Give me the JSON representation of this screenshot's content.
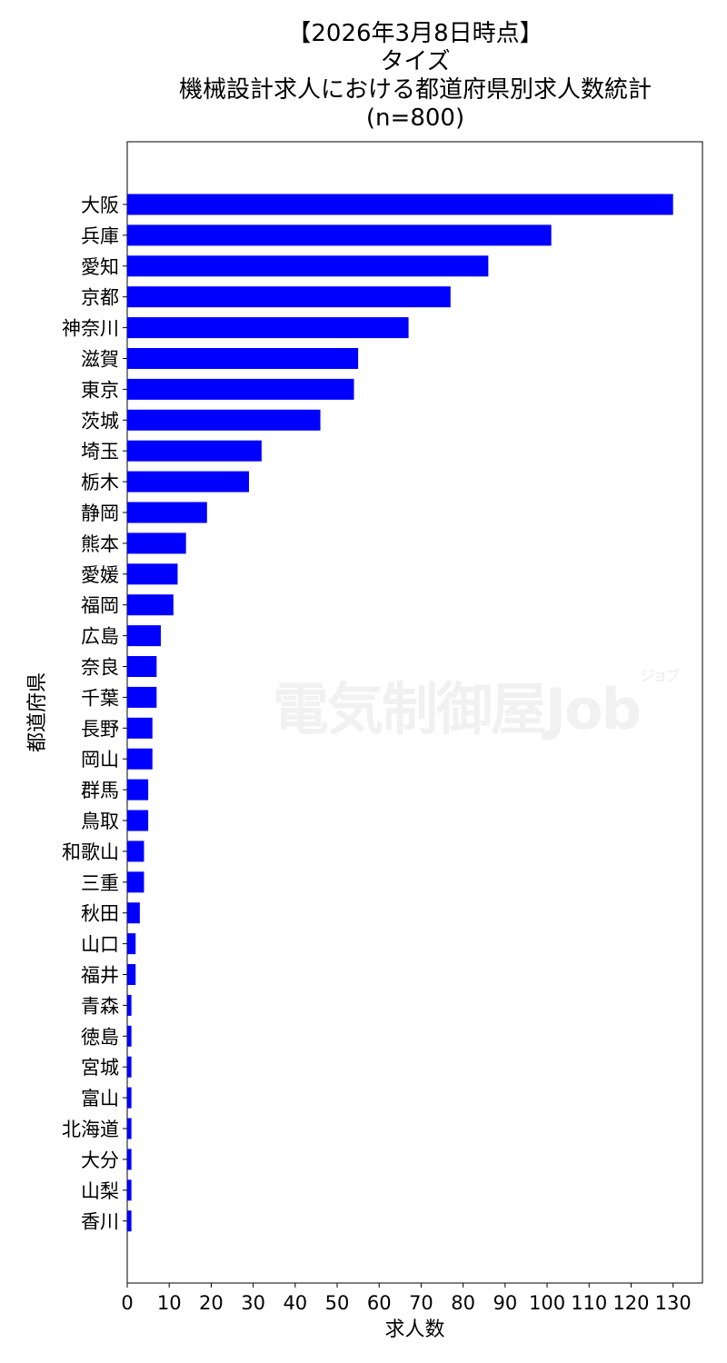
{
  "chart_data": {
    "type": "bar",
    "orientation": "horizontal",
    "title_lines": [
      "【2026年3月8日時点】",
      "タイズ",
      "機械設計求人における都道府県別求人数統計",
      "(n=800)"
    ],
    "xlabel": "求人数",
    "ylabel": "都道府県",
    "xlim": [
      0,
      137
    ],
    "xticks": [
      0,
      10,
      20,
      30,
      40,
      50,
      60,
      70,
      80,
      90,
      100,
      110,
      120,
      130
    ],
    "grid": false,
    "bar_color": "#0000ff",
    "categories": [
      "大阪",
      "兵庫",
      "愛知",
      "京都",
      "神奈川",
      "滋賀",
      "東京",
      "茨城",
      "埼玉",
      "栃木",
      "静岡",
      "熊本",
      "愛媛",
      "福岡",
      "広島",
      "奈良",
      "千葉",
      "長野",
      "岡山",
      "群馬",
      "鳥取",
      "和歌山",
      "三重",
      "秋田",
      "山口",
      "福井",
      "青森",
      "徳島",
      "宮城",
      "富山",
      "北海道",
      "大分",
      "山梨",
      "香川"
    ],
    "values": [
      130,
      101,
      86,
      77,
      67,
      55,
      54,
      46,
      32,
      29,
      19,
      14,
      12,
      11,
      8,
      7,
      7,
      6,
      6,
      5,
      5,
      4,
      4,
      3,
      2,
      2,
      1,
      1,
      1,
      1,
      1,
      1,
      1,
      1
    ]
  },
  "watermark": {
    "main": "電気制御屋",
    "job": "Job",
    "small": "ジョブ"
  }
}
